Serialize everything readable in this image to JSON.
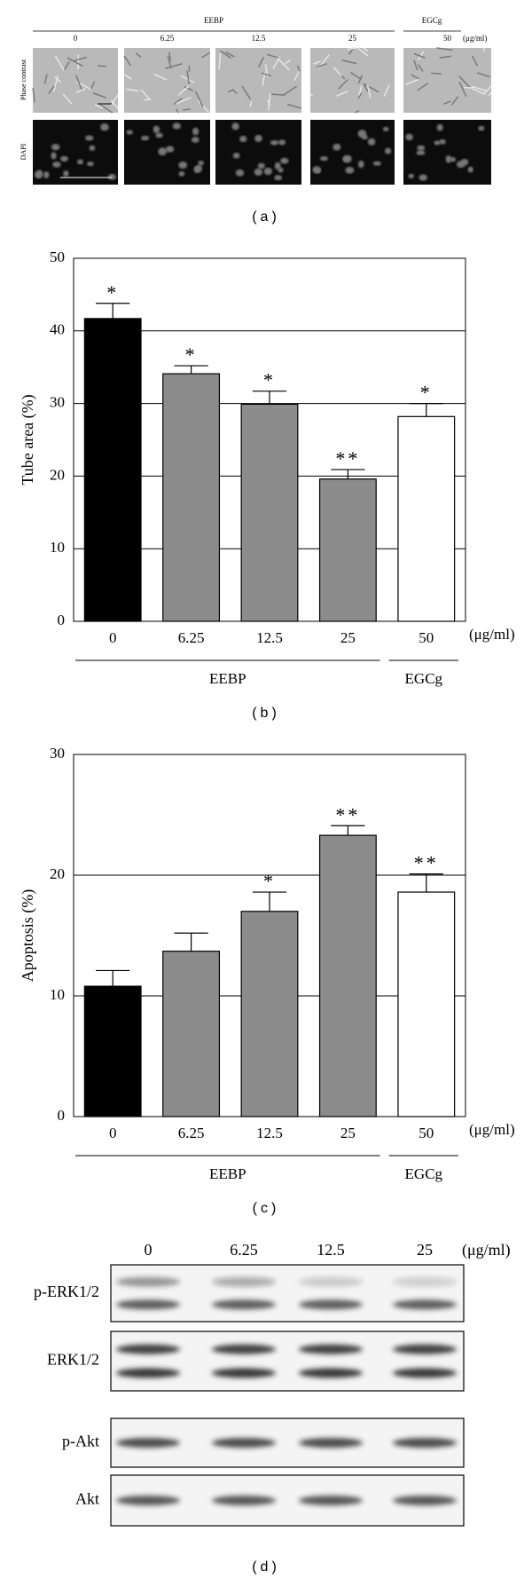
{
  "panel_a": {
    "groups": [
      "EEBP",
      "EGCg"
    ],
    "columns": [
      "0",
      "6.25",
      "12.5",
      "25",
      "50"
    ],
    "unit": "(μg/ml)",
    "rows": [
      "Phase contrast",
      "DAPI"
    ],
    "caption": "(a)"
  },
  "chart_data": [
    {
      "type": "bar",
      "ylabel": "Tube area (%)",
      "categories": [
        "0",
        "6.25",
        "12.5",
        "25",
        "50"
      ],
      "unit": "(μg/ml)",
      "groups": [
        "EEBP",
        "EGCg"
      ],
      "values": [
        41.7,
        34.1,
        29.9,
        19.6,
        28.2
      ],
      "errors": [
        2.1,
        1.1,
        1.8,
        1.3,
        1.8
      ],
      "annotations": [
        "*",
        "*",
        "*",
        "**",
        "*"
      ],
      "colors": [
        "#000000",
        "#8c8c8c",
        "#8c8c8c",
        "#8c8c8c",
        "#ffffff"
      ],
      "ylim": [
        0,
        50
      ],
      "yticks": [
        0,
        10,
        20,
        30,
        40,
        50
      ],
      "grid": true,
      "caption": "(b)"
    },
    {
      "type": "bar",
      "ylabel": "Apoptosis (%)",
      "categories": [
        "0",
        "6.25",
        "12.5",
        "25",
        "50"
      ],
      "unit": "(μg/ml)",
      "groups": [
        "EEBP",
        "EGCg"
      ],
      "values": [
        10.8,
        13.7,
        17.0,
        23.3,
        18.6
      ],
      "errors": [
        1.3,
        1.5,
        1.6,
        0.8,
        1.5
      ],
      "annotations": [
        null,
        null,
        "*",
        "**",
        "**"
      ],
      "colors": [
        "#000000",
        "#8c8c8c",
        "#8c8c8c",
        "#8c8c8c",
        "#ffffff"
      ],
      "ylim": [
        0,
        30
      ],
      "yticks": [
        0,
        10,
        20,
        30
      ],
      "grid": true,
      "caption": "(c)"
    }
  ],
  "panel_d": {
    "columns": [
      "0",
      "6.25",
      "12.5",
      "25"
    ],
    "unit": "(μg/ml)",
    "rows": [
      "p-ERK1/2",
      "ERK1/2",
      "p-Akt",
      "Akt"
    ],
    "caption": "(d)"
  }
}
